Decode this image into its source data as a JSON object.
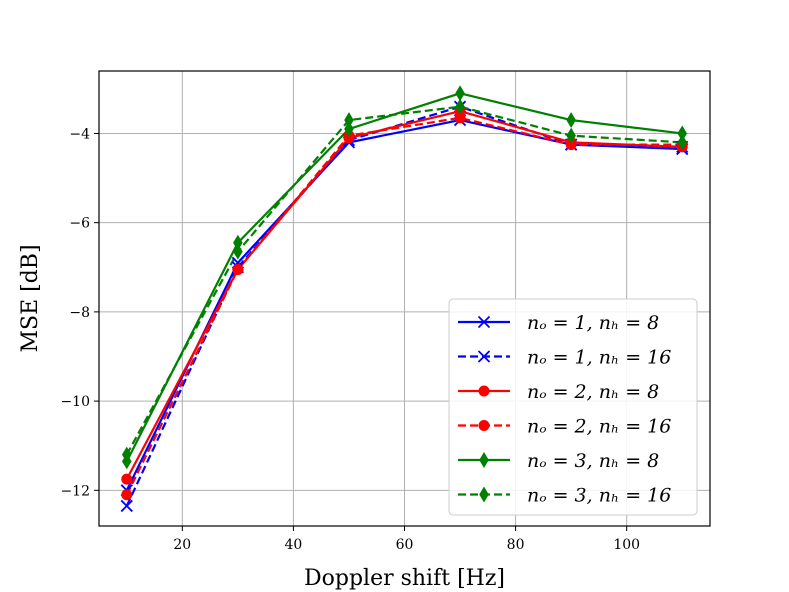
{
  "chart_data": {
    "type": "line",
    "title": "",
    "xlabel": "Doppler shift [Hz]",
    "ylabel": "MSE [dB]",
    "xlim": [
      5,
      115
    ],
    "ylim": [
      -12.8,
      -2.6
    ],
    "xticks": [
      20,
      40,
      60,
      80,
      100
    ],
    "yticks": [
      -12,
      -10,
      -8,
      -6,
      -4
    ],
    "xtick_labels": [
      "20",
      "40",
      "60",
      "80",
      "100"
    ],
    "ytick_labels": [
      "−12",
      "−10",
      "−8",
      "−6",
      "−4"
    ],
    "grid": true,
    "legend_position": "lower-right",
    "x": [
      10,
      30,
      50,
      70,
      90,
      110
    ],
    "series": [
      {
        "name": "n_o = 1, n_h = 8",
        "legend": "nₒ = 1, nₕ = 8",
        "color": "#0000ff",
        "dash": "solid",
        "marker": "x",
        "values": [
          -12.0,
          -6.9,
          -4.2,
          -3.7,
          -4.25,
          -4.35
        ]
      },
      {
        "name": "n_o = 1, n_h = 16",
        "legend": "nₒ = 1, nₕ = 16",
        "color": "#0000ff",
        "dash": "dashed",
        "marker": "x",
        "values": [
          -12.35,
          -7.0,
          -4.15,
          -3.4,
          -4.25,
          -4.3
        ]
      },
      {
        "name": "n_o = 2, n_h = 8",
        "legend": "nₒ = 2, nₕ = 8",
        "color": "#ff0000",
        "dash": "solid",
        "marker": "o",
        "values": [
          -11.75,
          -7.05,
          -4.1,
          -3.5,
          -4.2,
          -4.3
        ]
      },
      {
        "name": "n_o = 2, n_h = 16",
        "legend": "nₒ = 2, nₕ = 16",
        "color": "#ff0000",
        "dash": "dashed",
        "marker": "o",
        "values": [
          -12.1,
          -7.05,
          -4.05,
          -3.65,
          -4.25,
          -4.25
        ]
      },
      {
        "name": "n_o = 3, n_h = 8",
        "legend": "nₒ = 3, nₕ = 8",
        "color": "#008000",
        "dash": "solid",
        "marker": "d",
        "values": [
          -11.35,
          -6.45,
          -3.9,
          -3.1,
          -3.7,
          -4.0
        ]
      },
      {
        "name": "n_o = 3, n_h = 16",
        "legend": "nₒ = 3, nₕ = 16",
        "color": "#008000",
        "dash": "dashed",
        "marker": "d",
        "values": [
          -11.2,
          -6.65,
          -3.7,
          -3.4,
          -4.05,
          -4.2
        ]
      }
    ]
  }
}
